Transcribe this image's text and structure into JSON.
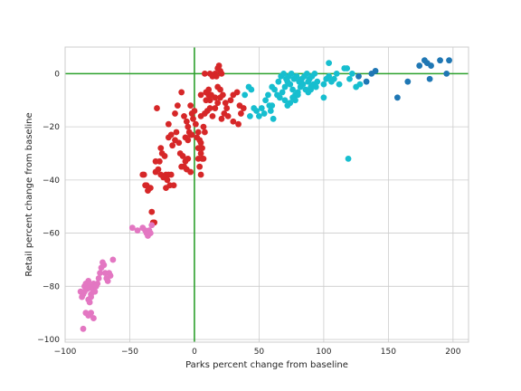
{
  "chart_data": {
    "type": "scatter",
    "title": "",
    "xlabel": "Parks percent change from baseline",
    "ylabel": "Retail percent change from baseline",
    "xlim": [
      -100,
      212
    ],
    "ylim": [
      -101,
      10
    ],
    "xticks": [
      -100,
      -50,
      0,
      50,
      100,
      150,
      200
    ],
    "yticks": [
      -100,
      -80,
      -60,
      -40,
      -20,
      0
    ],
    "grid": true,
    "reference_lines": {
      "x": 0,
      "y": 0,
      "color": "#2ca02c"
    },
    "colors": {
      "red": "#d62728",
      "pink": "#e377c2",
      "cyan": "#17becf",
      "blue": "#1f77b4",
      "grid": "#cccccc",
      "frame": "#cccccc"
    },
    "series": [
      {
        "color": "red",
        "points": [
          [
            -29,
            -13
          ],
          [
            -30,
            -33
          ],
          [
            -31,
            -56
          ],
          [
            -32,
            -56
          ],
          [
            -33,
            -52
          ],
          [
            -34,
            -43
          ],
          [
            -35,
            -43
          ],
          [
            -36,
            -44
          ],
          [
            -37,
            -42
          ],
          [
            -38,
            -42
          ],
          [
            -39,
            -38
          ],
          [
            -40,
            -38
          ],
          [
            -30,
            -37
          ],
          [
            -28,
            -36
          ],
          [
            -27,
            -33
          ],
          [
            -25,
            -30
          ],
          [
            -26,
            -38
          ],
          [
            -22,
            -38
          ],
          [
            -20,
            -38
          ],
          [
            -18,
            -38
          ],
          [
            -24,
            -39
          ],
          [
            -21,
            -40
          ],
          [
            -19,
            -42
          ],
          [
            -22,
            -43
          ],
          [
            -16,
            -42
          ],
          [
            -23,
            -31
          ],
          [
            -26,
            -28
          ],
          [
            -20,
            -24
          ],
          [
            -18,
            -23
          ],
          [
            -15,
            -25
          ],
          [
            -17,
            -27
          ],
          [
            -14,
            -22
          ],
          [
            -12,
            -26
          ],
          [
            -11,
            -30
          ],
          [
            -9,
            -31
          ],
          [
            -10,
            -35
          ],
          [
            -8,
            -35
          ],
          [
            -7,
            -33
          ],
          [
            -5,
            -32
          ],
          [
            -6,
            -36
          ],
          [
            -3,
            -37
          ],
          [
            -20,
            -19
          ],
          [
            -15,
            -15
          ],
          [
            -13,
            -12
          ],
          [
            -10,
            -7
          ],
          [
            -8,
            -16
          ],
          [
            -6,
            -18
          ],
          [
            -5,
            -20
          ],
          [
            -4,
            -22
          ],
          [
            -3,
            -23
          ],
          [
            -2,
            -23
          ],
          [
            -7,
            -24
          ],
          [
            -5,
            -25
          ],
          [
            -2,
            -15
          ],
          [
            0,
            -14
          ],
          [
            -1,
            -17
          ],
          [
            1,
            -19
          ],
          [
            3,
            -22
          ],
          [
            2,
            -24
          ],
          [
            4,
            -25
          ],
          [
            5,
            -26
          ],
          [
            3,
            -28
          ],
          [
            6,
            -28
          ],
          [
            5,
            -30
          ],
          [
            7,
            -32
          ],
          [
            3,
            -32
          ],
          [
            4,
            -35
          ],
          [
            6,
            -32
          ],
          [
            5,
            -38
          ],
          [
            8,
            -22
          ],
          [
            7,
            -20
          ],
          [
            5,
            -16
          ],
          [
            8,
            -15
          ],
          [
            10,
            -14
          ],
          [
            12,
            -13
          ],
          [
            14,
            -16
          ],
          [
            9,
            -7
          ],
          [
            11,
            -8
          ],
          [
            12,
            -10
          ],
          [
            16,
            -9
          ],
          [
            18,
            -5
          ],
          [
            20,
            -6
          ],
          [
            22,
            -8
          ],
          [
            24,
            -11
          ],
          [
            25,
            -13
          ],
          [
            23,
            -15
          ],
          [
            21,
            -17
          ],
          [
            26,
            -16
          ],
          [
            28,
            -10
          ],
          [
            30,
            -8
          ],
          [
            33,
            -7
          ],
          [
            35,
            -12
          ],
          [
            38,
            -13
          ],
          [
            36,
            -15
          ],
          [
            34,
            -19
          ],
          [
            30,
            -18
          ],
          [
            18,
            -11
          ],
          [
            16,
            -13
          ],
          [
            20,
            -9
          ],
          [
            13,
            -8
          ],
          [
            8,
            0
          ],
          [
            12,
            0
          ],
          [
            14,
            -1
          ],
          [
            16,
            0
          ],
          [
            18,
            2
          ],
          [
            20,
            1
          ],
          [
            19,
            3
          ],
          [
            21,
            0
          ],
          [
            17,
            -1
          ],
          [
            5,
            -8
          ],
          [
            9,
            -10
          ],
          [
            11,
            -6
          ],
          [
            -3,
            -12
          ]
        ]
      },
      {
        "color": "pink",
        "points": [
          [
            -86,
            -96
          ],
          [
            -88,
            -82
          ],
          [
            -87,
            -84
          ],
          [
            -85,
            -80
          ],
          [
            -84,
            -79
          ],
          [
            -83,
            -81
          ],
          [
            -82,
            -78
          ],
          [
            -81,
            -80
          ],
          [
            -80,
            -83
          ],
          [
            -79,
            -81
          ],
          [
            -78,
            -79
          ],
          [
            -77,
            -82
          ],
          [
            -80,
            -84
          ],
          [
            -82,
            -85
          ],
          [
            -76,
            -80
          ],
          [
            -75,
            -79
          ],
          [
            -74,
            -77
          ],
          [
            -73,
            -75
          ],
          [
            -72,
            -73
          ],
          [
            -71,
            -71
          ],
          [
            -70,
            -72
          ],
          [
            -69,
            -75
          ],
          [
            -68,
            -77
          ],
          [
            -67,
            -78
          ],
          [
            -66,
            -75
          ],
          [
            -65,
            -76
          ],
          [
            -63,
            -70
          ],
          [
            -84,
            -90
          ],
          [
            -82,
            -91
          ],
          [
            -80,
            -90
          ],
          [
            -78,
            -92
          ],
          [
            -86,
            -83
          ],
          [
            -85,
            -82
          ],
          [
            -81,
            -86
          ],
          [
            -48,
            -58
          ],
          [
            -44,
            -59
          ],
          [
            -40,
            -58
          ],
          [
            -38,
            -59
          ],
          [
            -37,
            -60
          ],
          [
            -36,
            -61
          ],
          [
            -35,
            -59
          ],
          [
            -34,
            -60
          ],
          [
            -33,
            -57
          ]
        ]
      },
      {
        "color": "cyan",
        "points": [
          [
            39,
            -8
          ],
          [
            42,
            -5
          ],
          [
            44,
            -6
          ],
          [
            43,
            -16
          ],
          [
            46,
            -13
          ],
          [
            48,
            -14
          ],
          [
            50,
            -16
          ],
          [
            52,
            -13
          ],
          [
            54,
            -15
          ],
          [
            55,
            -10
          ],
          [
            57,
            -8
          ],
          [
            58,
            -12
          ],
          [
            59,
            -14
          ],
          [
            60,
            -12
          ],
          [
            61,
            -17
          ],
          [
            60,
            -5
          ],
          [
            62,
            -6
          ],
          [
            64,
            -8
          ],
          [
            66,
            -9
          ],
          [
            68,
            -7
          ],
          [
            70,
            -5
          ],
          [
            72,
            -3
          ],
          [
            74,
            -4
          ],
          [
            76,
            -6
          ],
          [
            78,
            -8
          ],
          [
            80,
            -7
          ],
          [
            82,
            -5
          ],
          [
            84,
            -4
          ],
          [
            86,
            -6
          ],
          [
            88,
            -7
          ],
          [
            90,
            -5
          ],
          [
            65,
            -3
          ],
          [
            67,
            -1
          ],
          [
            69,
            0
          ],
          [
            71,
            -2
          ],
          [
            73,
            -1
          ],
          [
            75,
            0
          ],
          [
            77,
            -2
          ],
          [
            79,
            -1
          ],
          [
            81,
            -3
          ],
          [
            83,
            -2
          ],
          [
            85,
            -1
          ],
          [
            87,
            0
          ],
          [
            89,
            -2
          ],
          [
            91,
            -1
          ],
          [
            93,
            0
          ],
          [
            95,
            -3
          ],
          [
            70,
            -10
          ],
          [
            72,
            -12
          ],
          [
            74,
            -11
          ],
          [
            76,
            -9
          ],
          [
            78,
            -10
          ],
          [
            80,
            -8
          ],
          [
            88,
            -3
          ],
          [
            90,
            -6
          ],
          [
            92,
            -4
          ],
          [
            94,
            -5
          ],
          [
            100,
            -4
          ],
          [
            102,
            -2
          ],
          [
            104,
            -1
          ],
          [
            106,
            -3
          ],
          [
            108,
            -2
          ],
          [
            100,
            -9
          ],
          [
            104,
            4
          ],
          [
            110,
            0
          ],
          [
            112,
            -4
          ],
          [
            116,
            2
          ],
          [
            118,
            2
          ],
          [
            120,
            -2
          ],
          [
            119,
            -32
          ],
          [
            122,
            0
          ],
          [
            125,
            -5
          ],
          [
            128,
            -4
          ]
        ]
      },
      {
        "color": "blue",
        "points": [
          [
            127,
            -1
          ],
          [
            133,
            -3
          ],
          [
            137,
            0
          ],
          [
            140,
            1
          ],
          [
            157,
            -9
          ],
          [
            165,
            -3
          ],
          [
            174,
            3
          ],
          [
            178,
            5
          ],
          [
            180,
            4
          ],
          [
            182,
            -2
          ],
          [
            183,
            3
          ],
          [
            190,
            5
          ],
          [
            195,
            0
          ],
          [
            197,
            5
          ]
        ]
      }
    ]
  }
}
